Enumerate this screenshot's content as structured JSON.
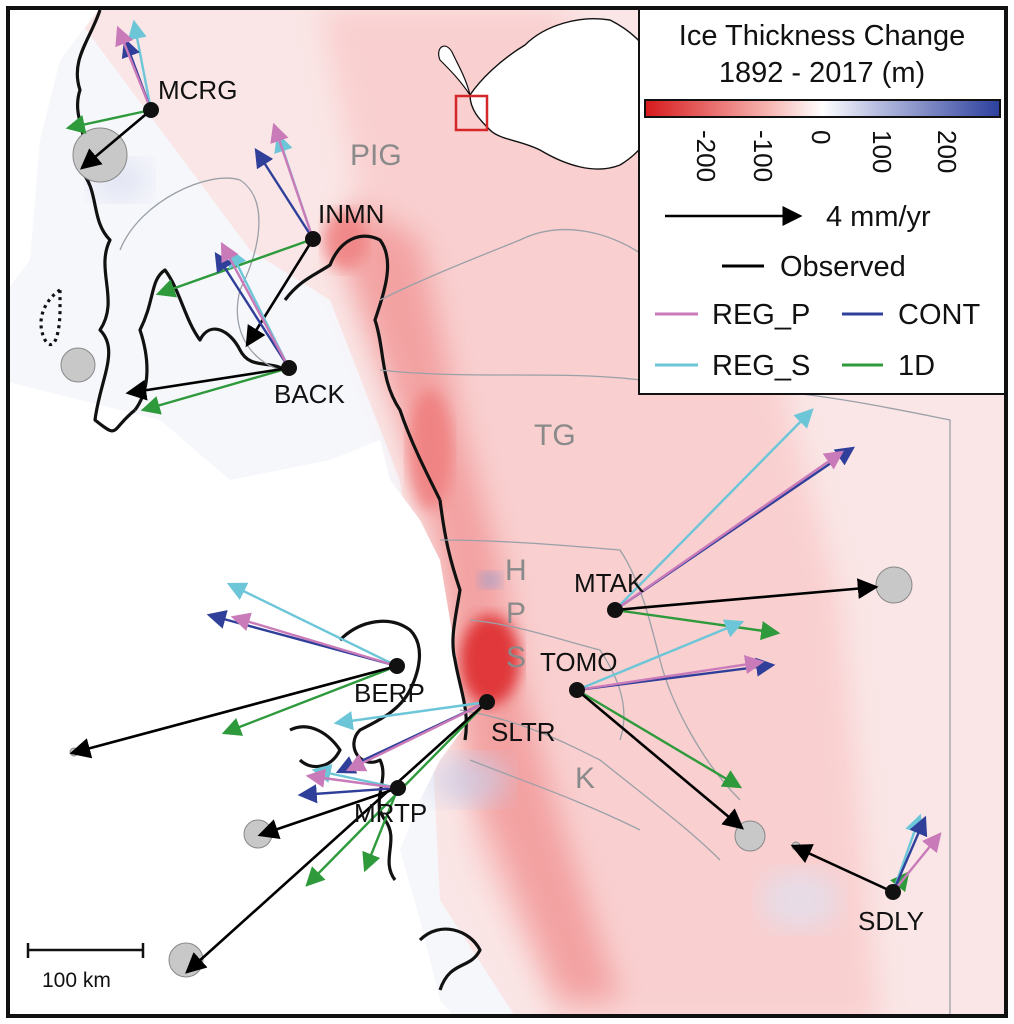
{
  "legend": {
    "title_line1": "Ice Thickness Change",
    "title_line2": "1892 - 2017 (m)",
    "colorbar": {
      "ticks": [
        "-200",
        "-100",
        "0",
        "100",
        "200"
      ],
      "colors": [
        "#d7191c",
        "#ffffff",
        "#2c3f9e"
      ]
    },
    "vector_scale_label": "4 mm/yr",
    "series": [
      {
        "key": "observed",
        "label": "Observed",
        "color": "#000000"
      },
      {
        "key": "reg_p",
        "label": "REG_P",
        "color": "#c97ab8"
      },
      {
        "key": "cont",
        "label": "CONT",
        "color": "#2f3f9a"
      },
      {
        "key": "reg_s",
        "label": "REG_S",
        "color": "#6cc6d8"
      },
      {
        "key": "one_d",
        "label": "1D",
        "color": "#2e9a3c"
      }
    ]
  },
  "scale_bar": {
    "label": "100 km"
  },
  "basins": [
    "PIG",
    "TG",
    "H",
    "P",
    "S",
    "K"
  ],
  "stations": [
    "MCRG",
    "INMN",
    "BACK",
    "MTAK",
    "BERP",
    "TOMO",
    "SLTR",
    "MRTP",
    "SDLY"
  ]
}
